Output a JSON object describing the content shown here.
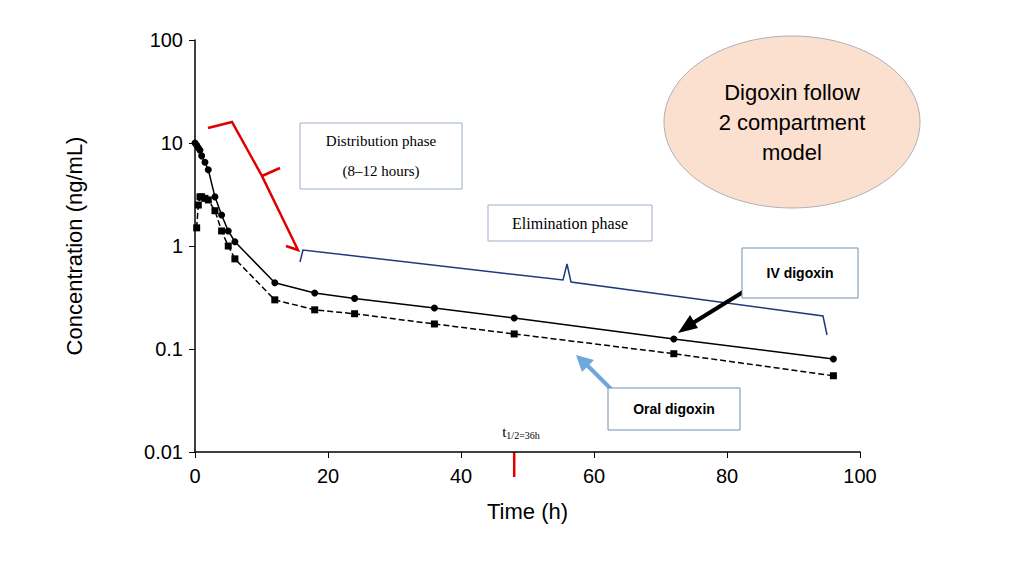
{
  "chart_data": {
    "type": "line",
    "x_label": "Time (h)",
    "y_label": "Concentration (ng/mL)",
    "x": [
      0,
      0.25,
      0.5,
      0.75,
      1,
      1.5,
      2,
      3,
      4,
      5,
      6,
      12,
      18,
      24,
      36,
      48,
      72,
      96
    ],
    "series": [
      {
        "name": "IV digoxin",
        "color": "#000000",
        "marker": "circle",
        "line_style": "solid",
        "values": [
          10,
          9.5,
          9,
          8.5,
          7.5,
          6.5,
          5.5,
          3.0,
          2.0,
          1.4,
          1.1,
          0.44,
          0.35,
          0.31,
          0.25,
          0.2,
          0.125,
          0.08
        ]
      },
      {
        "name": "Oral digoxin",
        "color": "#000000",
        "marker": "square",
        "line_style": "dashed",
        "values": [
          null,
          1.5,
          2.5,
          3.0,
          3.0,
          2.9,
          2.8,
          2.2,
          1.4,
          1.0,
          0.75,
          0.3,
          0.24,
          0.22,
          0.175,
          0.14,
          0.09,
          0.055
        ]
      }
    ],
    "xlim": [
      0,
      100
    ],
    "xticks": [
      0,
      20,
      40,
      60,
      80,
      100
    ],
    "ylim": [
      0.01,
      100
    ],
    "yticks": [
      0.01,
      0.1,
      1,
      10,
      100
    ],
    "log": "y",
    "grid": false,
    "annotations": [
      {
        "text": "Digoxin follow\n2 compartment\nmodel"
      },
      {
        "text": "Distribution phase\n(8–12 hours)"
      },
      {
        "text": "Elimination phase"
      },
      {
        "text": "t1/2=36h",
        "x": 48
      }
    ]
  }
}
